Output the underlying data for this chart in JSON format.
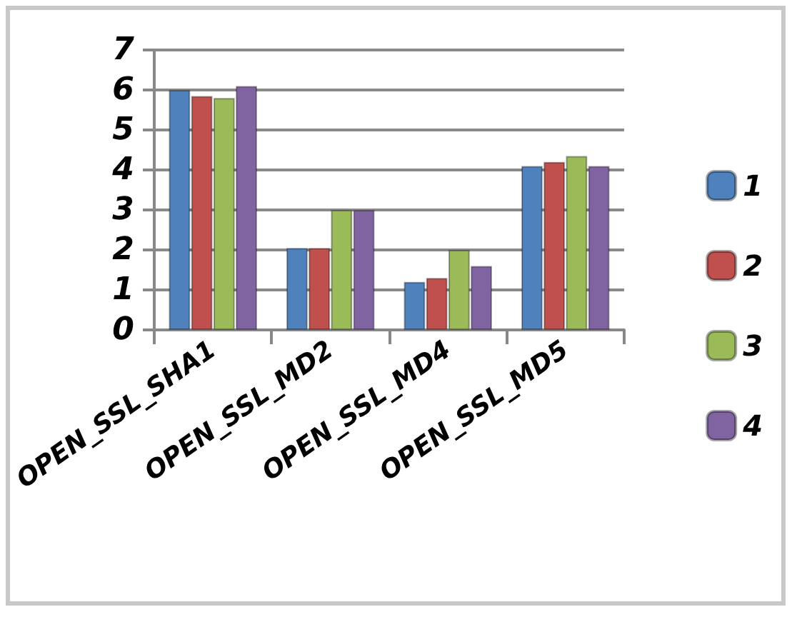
{
  "chart_data": {
    "type": "bar",
    "categories": [
      "OPEN_SSL_SHA1",
      "OPEN_SSL_MD2",
      "OPEN_SSL_MD4",
      "OPEN_SSL_MD5"
    ],
    "series": [
      {
        "name": "1",
        "color": "#4f81bd",
        "values": [
          6.0,
          2.05,
          1.2,
          4.1
        ]
      },
      {
        "name": "2",
        "color": "#c0504d",
        "values": [
          5.85,
          2.05,
          1.3,
          4.2
        ]
      },
      {
        "name": "3",
        "color": "#9bbb59",
        "values": [
          5.8,
          3.0,
          2.0,
          4.35
        ]
      },
      {
        "name": "4",
        "color": "#8064a2",
        "values": [
          6.1,
          3.0,
          1.6,
          4.1
        ]
      }
    ],
    "ylim": [
      0,
      7
    ],
    "yticks": [
      0,
      1,
      2,
      3,
      4,
      5,
      6,
      7
    ],
    "grid": "y",
    "legend": "right"
  }
}
